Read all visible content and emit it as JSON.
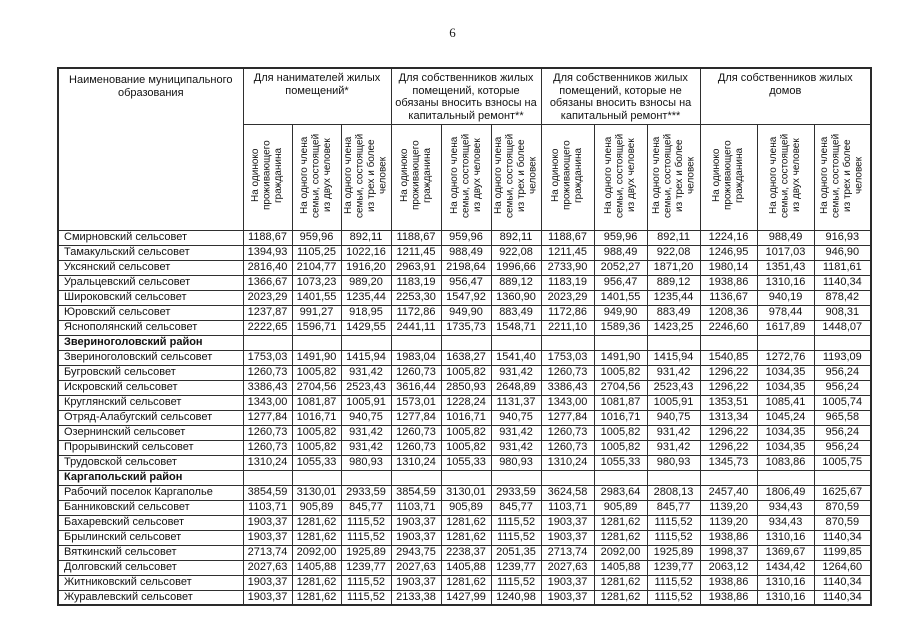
{
  "page": {
    "number": "6"
  },
  "table": {
    "name_header": "Наименование муниципального образования",
    "groups": [
      {
        "label": "Для нанимателей жилых помещений*"
      },
      {
        "label": "Для собственников жилых помещений, которые обязаны вносить взносы на капитальный ремонт**"
      },
      {
        "label": "Для собственников жилых помещений, которые не обязаны вносить взносы на капитальный ремонт***"
      },
      {
        "label": "Для собственников жилых домов"
      }
    ],
    "subheaders": [
      "На одиноко проживающего гражданина",
      "На одного члена семьи, состоящей из двух человек",
      "На одного члена семьи, состоящей из трех и более человек"
    ],
    "rows": [
      {
        "type": "data",
        "name": "Смирновский сельсовет",
        "values": [
          "1188,67",
          "959,96",
          "892,11",
          "1188,67",
          "959,96",
          "892,11",
          "1188,67",
          "959,96",
          "892,11",
          "1224,16",
          "988,49",
          "916,93"
        ]
      },
      {
        "type": "data",
        "name": "Тамакульский сельсовет",
        "values": [
          "1394,93",
          "1105,25",
          "1022,16",
          "1211,45",
          "988,49",
          "922,08",
          "1211,45",
          "988,49",
          "922,08",
          "1246,95",
          "1017,03",
          "946,90"
        ]
      },
      {
        "type": "data",
        "name": "Уксянский сельсовет",
        "values": [
          "2816,40",
          "2104,77",
          "1916,20",
          "2963,91",
          "2198,64",
          "1996,66",
          "2733,90",
          "2052,27",
          "1871,20",
          "1980,14",
          "1351,43",
          "1181,61"
        ]
      },
      {
        "type": "data",
        "name": "Уральцевский сельсовет",
        "values": [
          "1366,67",
          "1073,23",
          "989,20",
          "1183,19",
          "956,47",
          "889,12",
          "1183,19",
          "956,47",
          "889,12",
          "1938,86",
          "1310,16",
          "1140,34"
        ]
      },
      {
        "type": "data",
        "name": "Широковский сельсовет",
        "values": [
          "2023,29",
          "1401,55",
          "1235,44",
          "2253,30",
          "1547,92",
          "1360,90",
          "2023,29",
          "1401,55",
          "1235,44",
          "1136,67",
          "940,19",
          "878,42"
        ]
      },
      {
        "type": "data",
        "name": "Юровский сельсовет",
        "values": [
          "1237,87",
          "991,27",
          "918,95",
          "1172,86",
          "949,90",
          "883,49",
          "1172,86",
          "949,90",
          "883,49",
          "1208,36",
          "978,44",
          "908,31"
        ]
      },
      {
        "type": "data",
        "name": "Яснополянский сельсовет",
        "values": [
          "2222,65",
          "1596,71",
          "1429,55",
          "2441,11",
          "1735,73",
          "1548,71",
          "2211,10",
          "1589,36",
          "1423,25",
          "2246,60",
          "1617,89",
          "1448,07"
        ]
      },
      {
        "type": "section",
        "name": "Звериноголовский район",
        "values": []
      },
      {
        "type": "data",
        "name": "Звериноголовский сельсовет",
        "values": [
          "1753,03",
          "1491,90",
          "1415,94",
          "1983,04",
          "1638,27",
          "1541,40",
          "1753,03",
          "1491,90",
          "1415,94",
          "1540,85",
          "1272,76",
          "1193,09"
        ]
      },
      {
        "type": "data",
        "name": "Бугровский сельсовет",
        "values": [
          "1260,73",
          "1005,82",
          "931,42",
          "1260,73",
          "1005,82",
          "931,42",
          "1260,73",
          "1005,82",
          "931,42",
          "1296,22",
          "1034,35",
          "956,24"
        ]
      },
      {
        "type": "data",
        "name": "Искровский сельсовет",
        "values": [
          "3386,43",
          "2704,56",
          "2523,43",
          "3616,44",
          "2850,93",
          "2648,89",
          "3386,43",
          "2704,56",
          "2523,43",
          "1296,22",
          "1034,35",
          "956,24"
        ]
      },
      {
        "type": "data",
        "name": "Круглянский сельсовет",
        "values": [
          "1343,00",
          "1081,87",
          "1005,91",
          "1573,01",
          "1228,24",
          "1131,37",
          "1343,00",
          "1081,87",
          "1005,91",
          "1353,51",
          "1085,41",
          "1005,74"
        ]
      },
      {
        "type": "data",
        "name": "Отряд-Алабугский сельсовет",
        "values": [
          "1277,84",
          "1016,71",
          "940,75",
          "1277,84",
          "1016,71",
          "940,75",
          "1277,84",
          "1016,71",
          "940,75",
          "1313,34",
          "1045,24",
          "965,58"
        ]
      },
      {
        "type": "data",
        "name": "Озернинский сельсовет",
        "values": [
          "1260,73",
          "1005,82",
          "931,42",
          "1260,73",
          "1005,82",
          "931,42",
          "1260,73",
          "1005,82",
          "931,42",
          "1296,22",
          "1034,35",
          "956,24"
        ]
      },
      {
        "type": "data",
        "name": "Прорывинский сельсовет",
        "values": [
          "1260,73",
          "1005,82",
          "931,42",
          "1260,73",
          "1005,82",
          "931,42",
          "1260,73",
          "1005,82",
          "931,42",
          "1296,22",
          "1034,35",
          "956,24"
        ]
      },
      {
        "type": "data",
        "name": "Трудовской сельсовет",
        "values": [
          "1310,24",
          "1055,33",
          "980,93",
          "1310,24",
          "1055,33",
          "980,93",
          "1310,24",
          "1055,33",
          "980,93",
          "1345,73",
          "1083,86",
          "1005,75"
        ]
      },
      {
        "type": "section",
        "name": "Каргапольский район",
        "values": []
      },
      {
        "type": "data",
        "name": "Рабочий поселок Каргаполье",
        "values": [
          "3854,59",
          "3130,01",
          "2933,59",
          "3854,59",
          "3130,01",
          "2933,59",
          "3624,58",
          "2983,64",
          "2808,13",
          "2457,40",
          "1806,49",
          "1625,67"
        ]
      },
      {
        "type": "data",
        "name": "Банниковский сельсовет",
        "values": [
          "1103,71",
          "905,89",
          "845,77",
          "1103,71",
          "905,89",
          "845,77",
          "1103,71",
          "905,89",
          "845,77",
          "1139,20",
          "934,43",
          "870,59"
        ]
      },
      {
        "type": "data",
        "name": "Бахаревский сельсовет",
        "values": [
          "1903,37",
          "1281,62",
          "1115,52",
          "1903,37",
          "1281,62",
          "1115,52",
          "1903,37",
          "1281,62",
          "1115,52",
          "1139,20",
          "934,43",
          "870,59"
        ]
      },
      {
        "type": "data",
        "name": "Брылинский сельсовет",
        "values": [
          "1903,37",
          "1281,62",
          "1115,52",
          "1903,37",
          "1281,62",
          "1115,52",
          "1903,37",
          "1281,62",
          "1115,52",
          "1938,86",
          "1310,16",
          "1140,34"
        ]
      },
      {
        "type": "data",
        "name": "Вяткинский сельсовет",
        "values": [
          "2713,74",
          "2092,00",
          "1925,89",
          "2943,75",
          "2238,37",
          "2051,35",
          "2713,74",
          "2092,00",
          "1925,89",
          "1998,37",
          "1369,67",
          "1199,85"
        ]
      },
      {
        "type": "data",
        "name": "Долговский сельсовет",
        "values": [
          "2027,63",
          "1405,88",
          "1239,77",
          "2027,63",
          "1405,88",
          "1239,77",
          "2027,63",
          "1405,88",
          "1239,77",
          "2063,12",
          "1434,42",
          "1264,60"
        ]
      },
      {
        "type": "data",
        "name": "Житниковский сельсовет",
        "values": [
          "1903,37",
          "1281,62",
          "1115,52",
          "1903,37",
          "1281,62",
          "1115,52",
          "1903,37",
          "1281,62",
          "1115,52",
          "1938,86",
          "1310,16",
          "1140,34"
        ]
      },
      {
        "type": "data",
        "name": "Журавлевский сельсовет",
        "values": [
          "1903,37",
          "1281,62",
          "1115,52",
          "2133,38",
          "1427,99",
          "1240,98",
          "1903,37",
          "1281,62",
          "1115,52",
          "1938,86",
          "1310,16",
          "1140,34"
        ]
      }
    ]
  }
}
